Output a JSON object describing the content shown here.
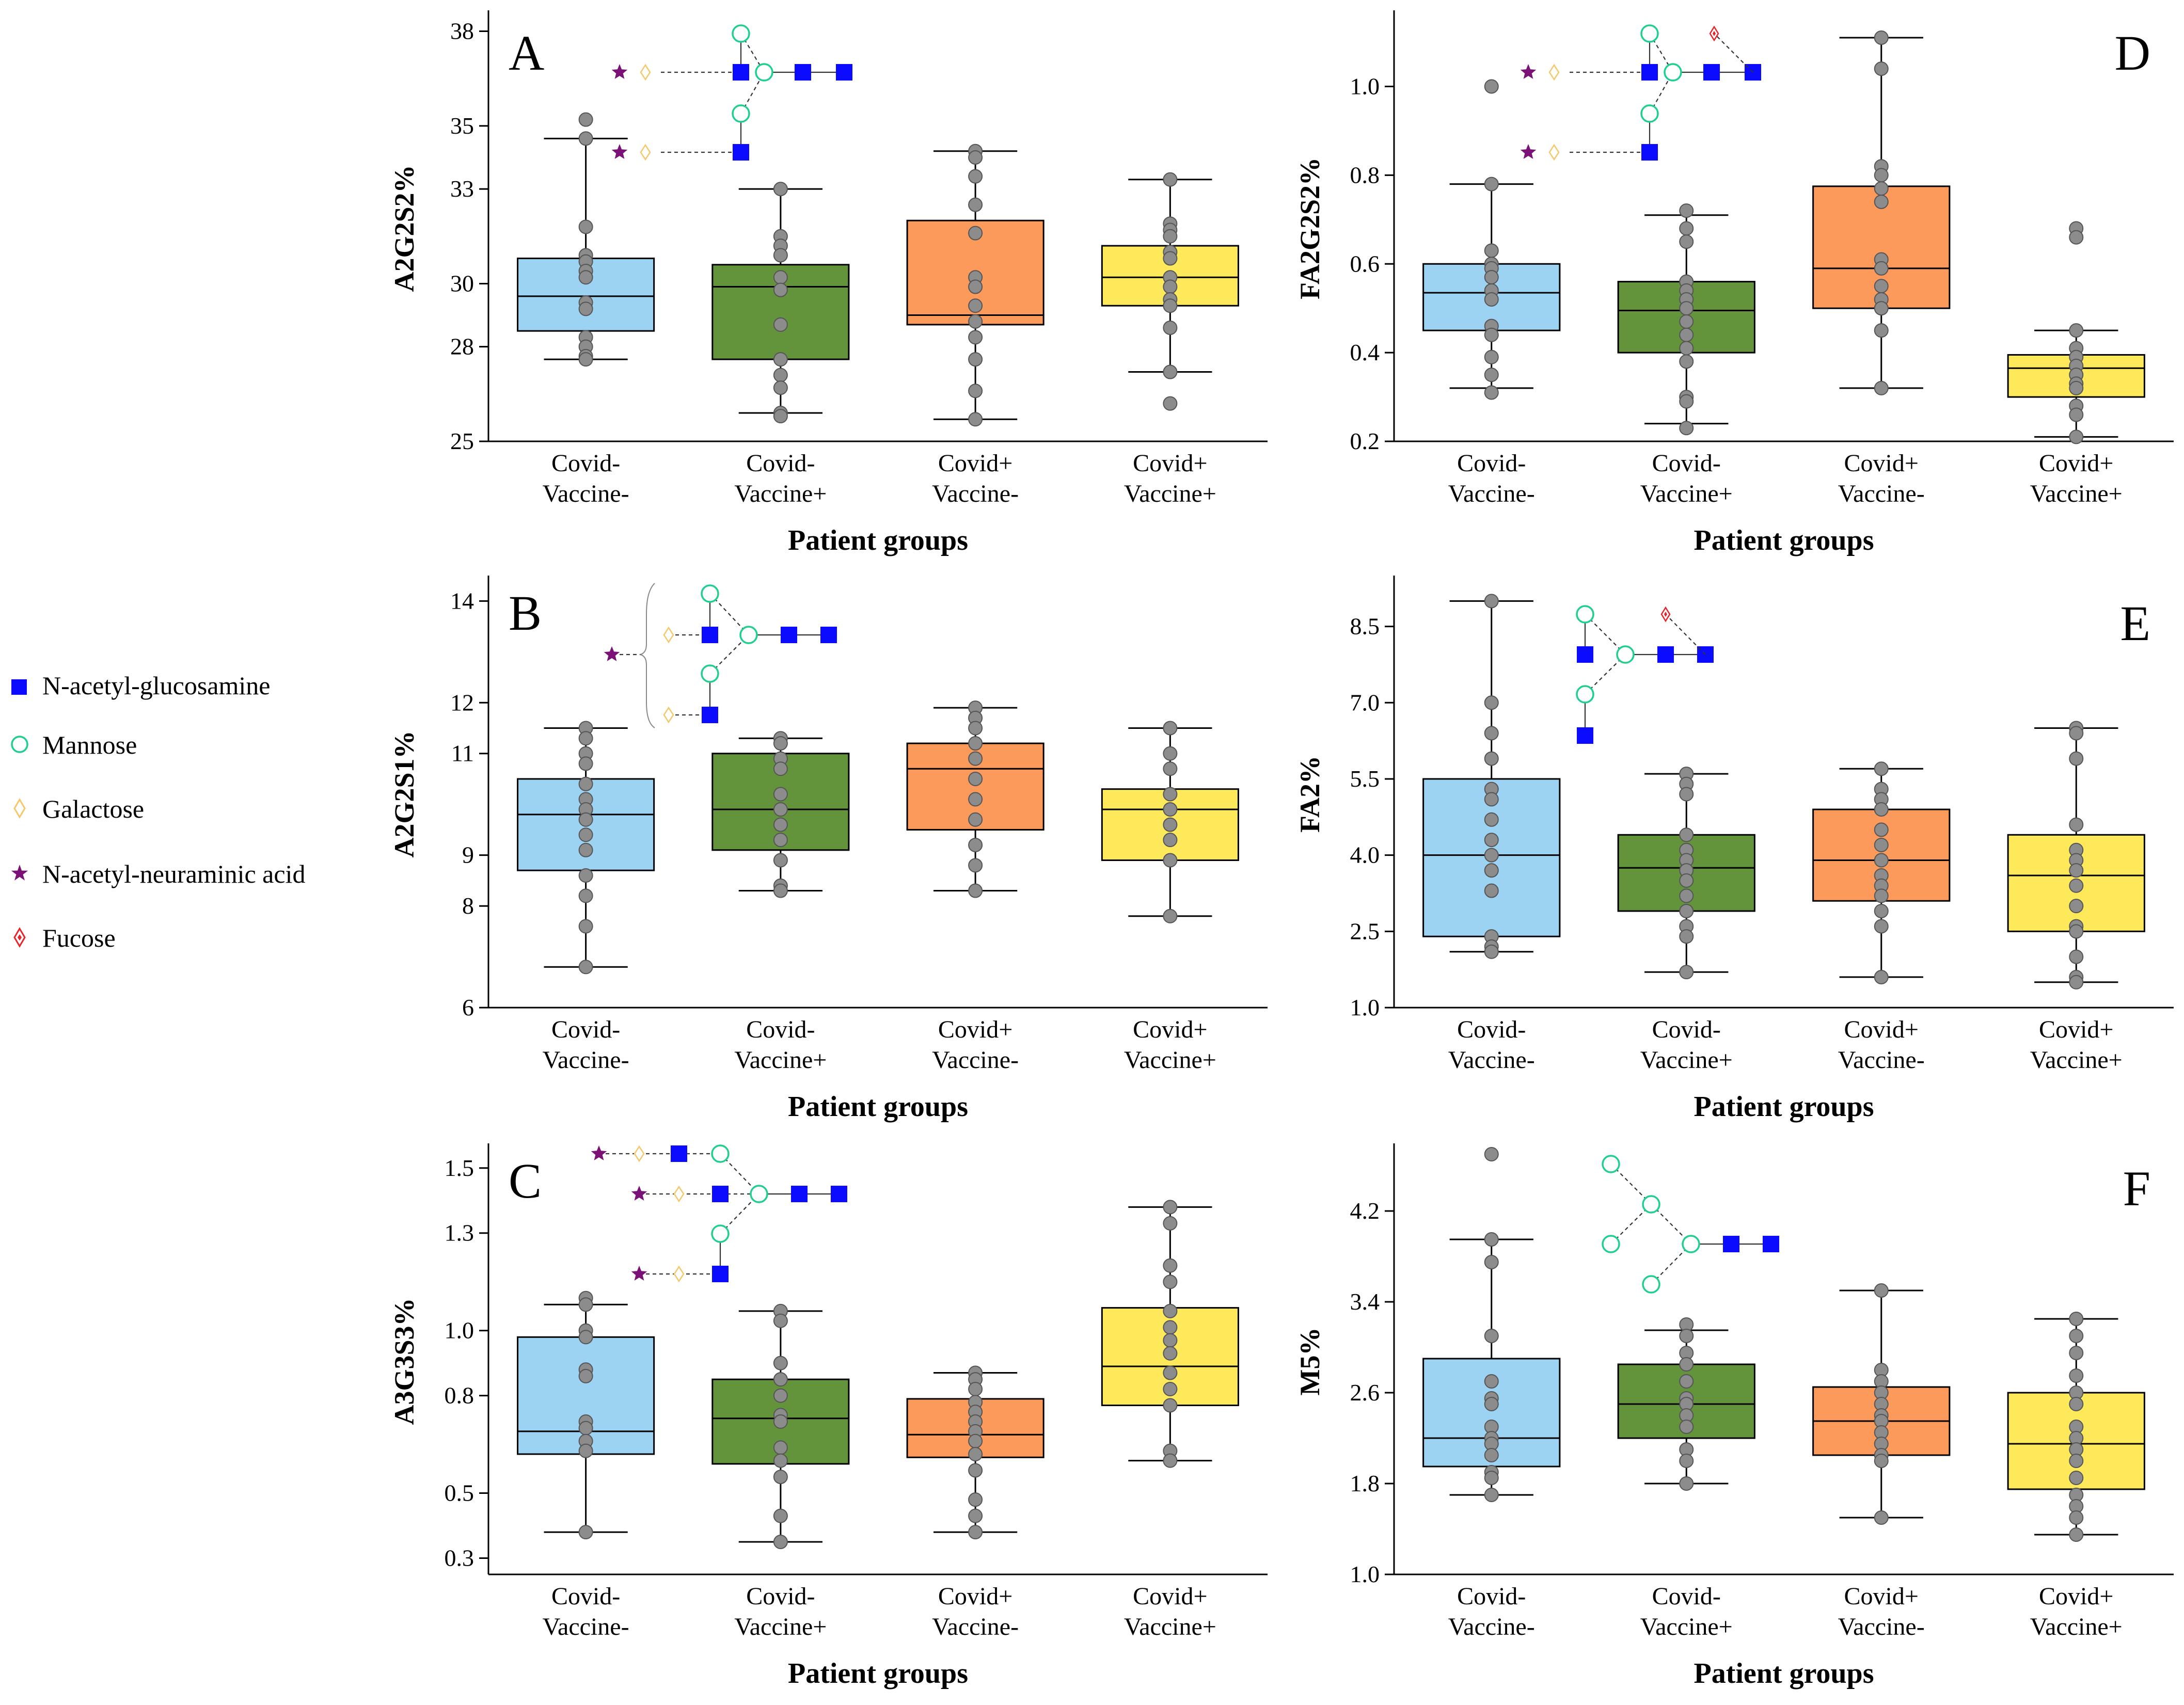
{
  "colors": {
    "box": [
      "#9dd3f2",
      "#63933a",
      "#fb9a5a",
      "#fde95a"
    ],
    "point": "#8c8c8c",
    "glcnac": "#0b0bff",
    "mannose": "#1fcf8e",
    "galactose": "#f5c76a",
    "neuac": "#7b1076",
    "fucose": "#e8232a"
  },
  "legend": {
    "items": [
      {
        "icon": "blue-square-icon",
        "label": "N-acetyl-glucosamine"
      },
      {
        "icon": "green-circle-icon",
        "label": "Mannose"
      },
      {
        "icon": "yellow-diamond-icon",
        "label": "Galactose"
      },
      {
        "icon": "purple-star-icon",
        "label": "N-acetyl-neuraminic acid"
      },
      {
        "icon": "red-diamond-icon",
        "label": "Fucose"
      }
    ]
  },
  "chart_data": [
    {
      "id": "A",
      "type": "box",
      "panel_label": "A",
      "ylabel": "A2G2S2%",
      "xlabel": "Patient groups",
      "categories": [
        [
          "Covid-",
          "Vaccine-"
        ],
        [
          "Covid-",
          "Vaccine+"
        ],
        [
          "Covid+",
          "Vaccine-"
        ],
        [
          "Covid+",
          "Vaccine+"
        ]
      ],
      "yticks": [
        25,
        28,
        30,
        33,
        35,
        38
      ],
      "ytick_labels": [
        "25",
        "28",
        "30",
        "33",
        "35",
        "38"
      ],
      "ylim": [
        25,
        38.5
      ],
      "boxes": [
        {
          "min": 27.6,
          "q1": 28.5,
          "median": 29.6,
          "q3": 30.8,
          "max": 34.6,
          "points": [
            35.2,
            34.6,
            31.8,
            30.9,
            30.7,
            30.4,
            30.2,
            29.4,
            29.2,
            28.3,
            28.0,
            27.7,
            27.6
          ]
        },
        {
          "min": 25.9,
          "q1": 27.6,
          "median": 29.9,
          "q3": 30.6,
          "max": 33.0,
          "points": [
            33.0,
            31.5,
            31.2,
            30.9,
            30.2,
            29.8,
            28.7,
            27.6,
            27.1,
            26.7,
            25.9,
            25.8
          ]
        },
        {
          "min": 25.7,
          "q1": 28.7,
          "median": 29.0,
          "q3": 32.0,
          "max": 34.2,
          "points": [
            34.2,
            34.0,
            33.4,
            32.5,
            31.6,
            30.2,
            29.9,
            29.3,
            28.8,
            28.3,
            27.6,
            26.6,
            25.7
          ]
        },
        {
          "min": 27.2,
          "q1": 29.3,
          "median": 30.2,
          "q3": 31.2,
          "max": 33.3,
          "points": [
            33.3,
            31.9,
            31.7,
            31.5,
            31.0,
            30.8,
            30.2,
            29.9,
            29.5,
            29.3,
            28.6,
            27.2,
            26.2
          ]
        }
      ],
      "glycan": "A2G2S2"
    },
    {
      "id": "B",
      "type": "box",
      "panel_label": "B",
      "ylabel": "A2G2S1%",
      "xlabel": "Patient groups",
      "categories": [
        [
          "Covid-",
          "Vaccine-"
        ],
        [
          "Covid-",
          "Vaccine+"
        ],
        [
          "Covid+",
          "Vaccine-"
        ],
        [
          "Covid+",
          "Vaccine+"
        ]
      ],
      "yticks": [
        6,
        8,
        9,
        11,
        12,
        14
      ],
      "ytick_labels": [
        "6",
        "8",
        "9",
        "11",
        "12",
        "14"
      ],
      "ylim": [
        6,
        14.4
      ],
      "boxes": [
        {
          "min": 6.8,
          "q1": 8.7,
          "median": 9.8,
          "q3": 10.5,
          "max": 11.5,
          "points": [
            11.5,
            11.3,
            11.0,
            10.8,
            10.4,
            10.1,
            9.9,
            9.7,
            9.4,
            9.1,
            8.6,
            8.2,
            7.6,
            6.8
          ]
        },
        {
          "min": 8.3,
          "q1": 9.1,
          "median": 9.9,
          "q3": 11.0,
          "max": 11.3,
          "points": [
            11.3,
            11.2,
            10.9,
            10.7,
            10.2,
            9.9,
            9.6,
            9.3,
            8.9,
            8.4,
            8.3
          ]
        },
        {
          "min": 8.3,
          "q1": 9.5,
          "median": 10.7,
          "q3": 11.2,
          "max": 11.9,
          "points": [
            11.9,
            11.7,
            11.5,
            11.2,
            10.9,
            10.5,
            10.1,
            9.7,
            9.2,
            8.8,
            8.3
          ]
        },
        {
          "min": 7.8,
          "q1": 8.9,
          "median": 9.9,
          "q3": 10.3,
          "max": 11.5,
          "points": [
            11.5,
            11.0,
            10.7,
            10.2,
            9.9,
            9.6,
            9.3,
            8.9,
            7.8
          ]
        }
      ],
      "glycan": "A2G2S1"
    },
    {
      "id": "C",
      "type": "box",
      "panel_label": "C",
      "ylabel": "A3G3S3%",
      "xlabel": "Patient groups",
      "categories": [
        [
          "Covid-",
          "Vaccine-"
        ],
        [
          "Covid-",
          "Vaccine+"
        ],
        [
          "Covid+",
          "Vaccine-"
        ],
        [
          "Covid+",
          "Vaccine+"
        ]
      ],
      "yticks": [
        0.3,
        0.5,
        0.8,
        1.0,
        1.3,
        1.5
      ],
      "ytick_labels": [
        "0.3",
        "0.5",
        "0.8",
        "1.0",
        "1.3",
        "1.5"
      ],
      "ylim": [
        0.25,
        1.56
      ],
      "boxes": [
        {
          "min": 0.38,
          "q1": 0.62,
          "median": 0.69,
          "q3": 0.98,
          "max": 1.08,
          "points": [
            1.1,
            1.08,
            1.0,
            0.98,
            0.88,
            0.86,
            0.72,
            0.7,
            0.66,
            0.63,
            0.38
          ]
        },
        {
          "min": 0.35,
          "q1": 0.59,
          "median": 0.73,
          "q3": 0.85,
          "max": 1.06,
          "points": [
            1.06,
            1.03,
            0.9,
            0.85,
            0.8,
            0.74,
            0.72,
            0.64,
            0.6,
            0.55,
            0.43,
            0.35
          ]
        },
        {
          "min": 0.38,
          "q1": 0.61,
          "median": 0.68,
          "q3": 0.79,
          "max": 0.87,
          "points": [
            0.87,
            0.85,
            0.82,
            0.78,
            0.75,
            0.72,
            0.69,
            0.66,
            0.62,
            0.57,
            0.48,
            0.43,
            0.38
          ]
        },
        {
          "min": 0.6,
          "q1": 0.77,
          "median": 0.89,
          "q3": 1.07,
          "max": 1.38,
          "points": [
            1.38,
            1.33,
            1.2,
            1.15,
            1.06,
            1.01,
            0.97,
            0.93,
            0.87,
            0.82,
            0.77,
            0.63,
            0.6
          ]
        }
      ],
      "glycan": "A3G3S3"
    },
    {
      "id": "D",
      "type": "box",
      "panel_label": "D",
      "ylabel": "FA2G2S2%",
      "xlabel": "Patient groups",
      "categories": [
        [
          "Covid-",
          "Vaccine-"
        ],
        [
          "Covid-",
          "Vaccine+"
        ],
        [
          "Covid+",
          "Vaccine-"
        ],
        [
          "Covid+",
          "Vaccine+"
        ]
      ],
      "yticks": [
        0.2,
        0.4,
        0.6,
        0.8,
        1.0
      ],
      "ytick_labels": [
        "0.2",
        "0.4",
        "0.6",
        "0.8",
        "1.0"
      ],
      "ylim": [
        0.2,
        1.16
      ],
      "boxes": [
        {
          "min": 0.32,
          "q1": 0.45,
          "median": 0.535,
          "q3": 0.6,
          "max": 0.78,
          "points": [
            1.0,
            0.78,
            0.63,
            0.6,
            0.59,
            0.57,
            0.54,
            0.52,
            0.46,
            0.44,
            0.39,
            0.35,
            0.31
          ]
        },
        {
          "min": 0.24,
          "q1": 0.4,
          "median": 0.495,
          "q3": 0.56,
          "max": 0.71,
          "points": [
            0.72,
            0.68,
            0.65,
            0.56,
            0.54,
            0.52,
            0.5,
            0.47,
            0.44,
            0.41,
            0.38,
            0.3,
            0.29,
            0.23
          ]
        },
        {
          "min": 0.32,
          "q1": 0.5,
          "median": 0.59,
          "q3": 0.775,
          "max": 1.11,
          "points": [
            1.11,
            1.04,
            0.82,
            0.8,
            0.77,
            0.74,
            0.61,
            0.59,
            0.55,
            0.52,
            0.5,
            0.45,
            0.32
          ]
        },
        {
          "min": 0.21,
          "q1": 0.3,
          "median": 0.365,
          "q3": 0.395,
          "max": 0.45,
          "points": [
            0.68,
            0.66,
            0.45,
            0.41,
            0.39,
            0.37,
            0.35,
            0.33,
            0.32,
            0.28,
            0.26,
            0.21
          ]
        }
      ],
      "glycan": "FA2G2S2"
    },
    {
      "id": "E",
      "type": "box",
      "panel_label": "E",
      "ylabel": "FA2%",
      "xlabel": "Patient groups",
      "categories": [
        [
          "Covid-",
          "Vaccine-"
        ],
        [
          "Covid-",
          "Vaccine+"
        ],
        [
          "Covid+",
          "Vaccine-"
        ],
        [
          "Covid+",
          "Vaccine+"
        ]
      ],
      "yticks": [
        1.0,
        2.5,
        4.0,
        5.5,
        7.0,
        8.5
      ],
      "ytick_labels": [
        "1.0",
        "2.5",
        "4.0",
        "5.5",
        "7.0",
        "8.5"
      ],
      "ylim": [
        1.0,
        9.4
      ],
      "boxes": [
        {
          "min": 2.1,
          "q1": 2.4,
          "median": 4.0,
          "q3": 5.5,
          "max": 9.0,
          "points": [
            9.0,
            7.0,
            6.4,
            5.9,
            5.3,
            5.1,
            4.7,
            4.3,
            4.0,
            3.7,
            3.3,
            2.4,
            2.2,
            2.1
          ]
        },
        {
          "min": 1.7,
          "q1": 2.9,
          "median": 3.75,
          "q3": 4.4,
          "max": 5.6,
          "points": [
            5.6,
            5.4,
            5.2,
            4.4,
            4.1,
            3.9,
            3.7,
            3.5,
            3.2,
            2.9,
            2.6,
            2.4,
            1.7
          ]
        },
        {
          "min": 1.6,
          "q1": 3.1,
          "median": 3.9,
          "q3": 4.9,
          "max": 5.7,
          "points": [
            5.7,
            5.3,
            5.1,
            4.9,
            4.5,
            4.2,
            3.9,
            3.6,
            3.4,
            3.2,
            2.9,
            2.6,
            1.6
          ]
        },
        {
          "min": 1.5,
          "q1": 2.5,
          "median": 3.6,
          "q3": 4.4,
          "max": 6.5,
          "points": [
            6.5,
            6.4,
            5.9,
            4.6,
            4.1,
            3.9,
            3.7,
            3.4,
            3.0,
            2.6,
            2.5,
            2.0,
            1.6,
            1.5
          ]
        }
      ],
      "glycan": "FA2"
    },
    {
      "id": "F",
      "type": "box",
      "panel_label": "F",
      "ylabel": "M5%",
      "xlabel": "Patient groups",
      "categories": [
        [
          "Covid-",
          "Vaccine-"
        ],
        [
          "Covid-",
          "Vaccine+"
        ],
        [
          "Covid+",
          "Vaccine-"
        ],
        [
          "Covid+",
          "Vaccine+"
        ]
      ],
      "yticks": [
        1.0,
        1.8,
        2.6,
        3.4,
        4.2
      ],
      "ytick_labels": [
        "1.0",
        "1.8",
        "2.6",
        "3.4",
        "4.2"
      ],
      "ylim": [
        1.0,
        4.75
      ],
      "boxes": [
        {
          "min": 1.7,
          "q1": 1.95,
          "median": 2.2,
          "q3": 2.9,
          "max": 3.95,
          "points": [
            4.7,
            3.95,
            3.75,
            3.1,
            2.7,
            2.55,
            2.5,
            2.3,
            2.2,
            2.15,
            2.05,
            1.9,
            1.85,
            1.7
          ]
        },
        {
          "min": 1.8,
          "q1": 2.2,
          "median": 2.5,
          "q3": 2.85,
          "max": 3.15,
          "points": [
            3.2,
            3.1,
            2.95,
            2.85,
            2.7,
            2.55,
            2.5,
            2.4,
            2.3,
            2.1,
            2.0,
            1.8
          ]
        },
        {
          "min": 1.5,
          "q1": 2.05,
          "median": 2.35,
          "q3": 2.65,
          "max": 3.5,
          "points": [
            3.5,
            2.8,
            2.7,
            2.6,
            2.5,
            2.4,
            2.35,
            2.25,
            2.15,
            2.05,
            2.0,
            1.5
          ]
        },
        {
          "min": 1.35,
          "q1": 1.75,
          "median": 2.15,
          "q3": 2.6,
          "max": 3.25,
          "points": [
            3.25,
            3.1,
            2.95,
            2.75,
            2.6,
            2.5,
            2.3,
            2.2,
            2.1,
            2.0,
            1.85,
            1.7,
            1.6,
            1.5,
            1.35
          ]
        }
      ],
      "glycan": "M5"
    }
  ]
}
